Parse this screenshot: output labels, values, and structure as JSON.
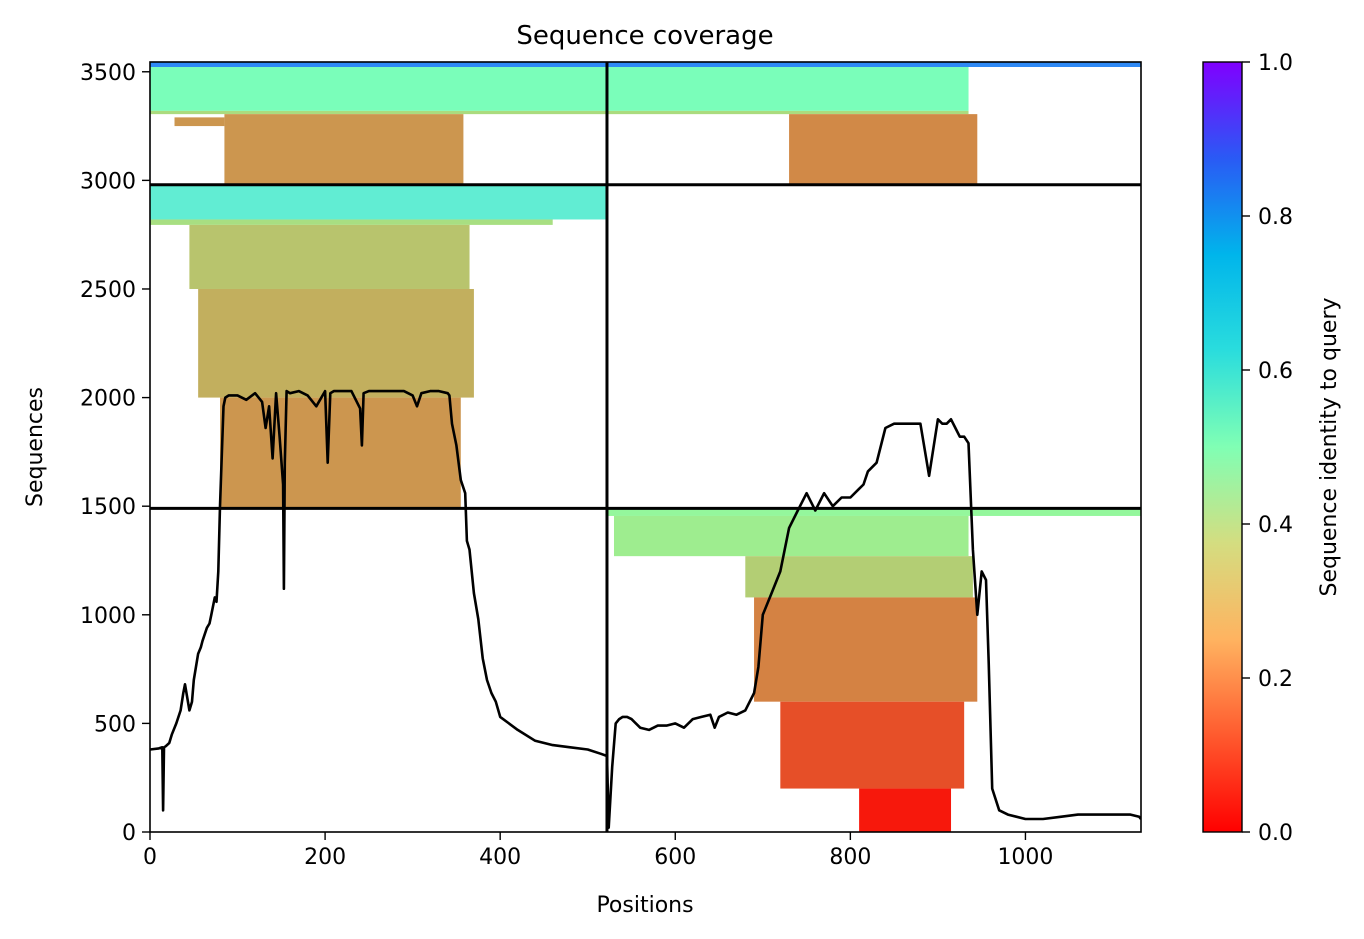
{
  "chart_data": {
    "type": "heatmap",
    "title": "Sequence coverage",
    "xlabel": "Positions",
    "ylabel": "Sequences",
    "xlim": [
      0,
      1132
    ],
    "ylim": [
      0,
      3545
    ],
    "x_ticks": [
      0,
      200,
      400,
      600,
      800,
      1000
    ],
    "y_ticks": [
      0,
      500,
      1000,
      1500,
      2000,
      2500,
      3000,
      3500
    ],
    "x_tick_labels": [
      "0",
      "200",
      "400",
      "600",
      "800",
      "1000"
    ],
    "y_tick_labels": [
      "0",
      "500",
      "1000",
      "1500",
      "2000",
      "2500",
      "3000",
      "3500"
    ],
    "colorbar": {
      "label": "Sequence identity to query",
      "colormap": "rainbow_r",
      "range": [
        0,
        1
      ],
      "ticks": [
        0.0,
        0.2,
        0.4,
        0.6,
        0.8,
        1.0
      ],
      "tick_labels": [
        "0.0",
        "0.2",
        "0.4",
        "0.6",
        "0.8",
        "1.0"
      ]
    },
    "dividers": {
      "vertical_x": [
        522
      ],
      "horizontal_y": [
        1490,
        2980
      ]
    },
    "blocks": [
      {
        "x0": 0,
        "x1": 522,
        "y0": 2980,
        "y1": 3545,
        "bands": [
          {
            "y0": 3522,
            "y1": 3545,
            "x0": 0,
            "x1": 522,
            "identity": 0.82
          },
          {
            "y0": 3320,
            "y1": 3522,
            "x0": 0,
            "x1": 522,
            "identity": 0.52
          },
          {
            "y0": 3305,
            "y1": 3320,
            "x0": 0,
            "x1": 522,
            "identity": 0.33
          },
          {
            "y0": 2980,
            "y1": 3305,
            "x0": 85,
            "x1": 358,
            "identity": 0.2
          },
          {
            "y0": 3250,
            "y1": 3290,
            "x0": 28,
            "x1": 85,
            "identity": 0.2
          }
        ]
      },
      {
        "x0": 522,
        "x1": 1132,
        "y0": 2980,
        "y1": 3545,
        "bands": [
          {
            "y0": 3522,
            "y1": 3545,
            "x0": 522,
            "x1": 1132,
            "identity": 0.82
          },
          {
            "y0": 3320,
            "y1": 3522,
            "x0": 522,
            "x1": 935,
            "identity": 0.52
          },
          {
            "y0": 3305,
            "y1": 3320,
            "x0": 522,
            "x1": 935,
            "identity": 0.33
          },
          {
            "y0": 2980,
            "y1": 3305,
            "x0": 730,
            "x1": 945,
            "identity": 0.18
          }
        ]
      },
      {
        "x0": 0,
        "x1": 522,
        "y0": 1490,
        "y1": 2980,
        "bands": [
          {
            "y0": 2820,
            "y1": 2980,
            "x0": 0,
            "x1": 522,
            "identity": 0.62
          },
          {
            "y0": 2795,
            "y1": 2820,
            "x0": 0,
            "x1": 460,
            "identity": 0.34
          },
          {
            "y0": 2500,
            "y1": 2795,
            "x0": 45,
            "x1": 365,
            "identity": 0.28
          },
          {
            "y0": 2000,
            "y1": 2500,
            "x0": 55,
            "x1": 370,
            "identity": 0.24
          },
          {
            "y0": 1490,
            "y1": 2000,
            "x0": 80,
            "x1": 355,
            "identity": 0.2
          }
        ]
      },
      {
        "x0": 522,
        "x1": 1132,
        "y0": 0,
        "y1": 1490,
        "bands": [
          {
            "y0": 1455,
            "y1": 1490,
            "x0": 522,
            "x1": 1132,
            "identity": 0.42
          },
          {
            "y0": 1270,
            "y1": 1455,
            "x0": 530,
            "x1": 935,
            "identity": 0.38
          },
          {
            "y0": 1080,
            "y1": 1270,
            "x0": 680,
            "x1": 940,
            "identity": 0.3
          },
          {
            "y0": 600,
            "y1": 1080,
            "x0": 690,
            "x1": 945,
            "identity": 0.17
          },
          {
            "y0": 200,
            "y1": 600,
            "x0": 720,
            "x1": 930,
            "identity": 0.1
          },
          {
            "y0": 0,
            "y1": 200,
            "x0": 810,
            "x1": 915,
            "identity": 0.03
          }
        ]
      }
    ],
    "series": [
      {
        "type": "line",
        "color": "#000000",
        "x": [
          0,
          10,
          14,
          15,
          16,
          18,
          22,
          25,
          30,
          35,
          38,
          40,
          45,
          48,
          50,
          55,
          58,
          60,
          65,
          68,
          70,
          74,
          76,
          78,
          80,
          84,
          86,
          90,
          100,
          110,
          120,
          128,
          132,
          136,
          140,
          144,
          148,
          152,
          153,
          154,
          156,
          160,
          170,
          180,
          190,
          200,
          203,
          206,
          210,
          220,
          230,
          240,
          242,
          244,
          250,
          260,
          270,
          280,
          290,
          300,
          305,
          310,
          320,
          330,
          340,
          342,
          345,
          350,
          355,
          360,
          362,
          365,
          370,
          375,
          380,
          385,
          390,
          395,
          400,
          420,
          440,
          460,
          480,
          500,
          515,
          522,
          524,
          528,
          532,
          536,
          540,
          545,
          550,
          560,
          570,
          580,
          590,
          600,
          610,
          620,
          630,
          640,
          645,
          650,
          660,
          670,
          680,
          690,
          695,
          700,
          710,
          720,
          725,
          730,
          740,
          750,
          760,
          770,
          780,
          790,
          800,
          810,
          815,
          820,
          830,
          840,
          850,
          860,
          870,
          875,
          880,
          890,
          900,
          905,
          910,
          915,
          920,
          925,
          930,
          935,
          940,
          945,
          950,
          955,
          958,
          962,
          970,
          980,
          1000,
          1020,
          1040,
          1060,
          1080,
          1100,
          1120,
          1130,
          1132
        ],
        "y": [
          380,
          385,
          390,
          100,
          390,
          395,
          410,
          450,
          500,
          560,
          640,
          680,
          560,
          600,
          700,
          820,
          850,
          880,
          940,
          960,
          1000,
          1080,
          1060,
          1200,
          1500,
          1960,
          2000,
          2010,
          2010,
          1990,
          2020,
          1980,
          1860,
          1960,
          1720,
          2020,
          1820,
          1600,
          1120,
          1700,
          2030,
          2020,
          2030,
          2010,
          1960,
          2030,
          1700,
          2020,
          2030,
          2030,
          2030,
          1950,
          1780,
          2020,
          2030,
          2030,
          2030,
          2030,
          2030,
          2010,
          1960,
          2020,
          2030,
          2030,
          2020,
          2010,
          1880,
          1780,
          1620,
          1560,
          1340,
          1300,
          1100,
          980,
          800,
          700,
          640,
          600,
          530,
          470,
          420,
          400,
          390,
          380,
          360,
          350,
          20,
          300,
          500,
          520,
          530,
          530,
          520,
          480,
          470,
          490,
          490,
          500,
          480,
          520,
          530,
          540,
          480,
          530,
          550,
          540,
          560,
          640,
          760,
          1000,
          1100,
          1200,
          1300,
          1400,
          1480,
          1560,
          1480,
          1560,
          1500,
          1540,
          1540,
          1580,
          1600,
          1660,
          1700,
          1860,
          1880,
          1880,
          1880,
          1880,
          1880,
          1640,
          1900,
          1880,
          1880,
          1900,
          1860,
          1820,
          1820,
          1790,
          1300,
          1000,
          1200,
          1160,
          780,
          200,
          100,
          80,
          60,
          60,
          70,
          80,
          80,
          80,
          80,
          70,
          60
        ]
      }
    ]
  }
}
